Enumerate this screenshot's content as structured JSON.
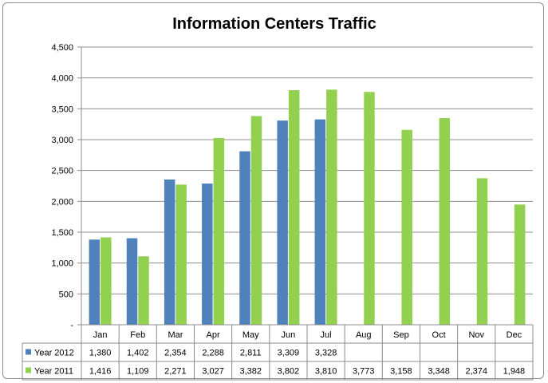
{
  "chart_data": {
    "type": "bar",
    "title": "Information Centers Traffic",
    "categories": [
      "Jan",
      "Feb",
      "Mar",
      "Apr",
      "May",
      "Jun",
      "Jul",
      "Aug",
      "Sep",
      "Oct",
      "Nov",
      "Dec"
    ],
    "series": [
      {
        "name": "Year 2012",
        "color": "#4f81bd",
        "values": [
          1380,
          1402,
          2354,
          2288,
          2811,
          3309,
          3328,
          null,
          null,
          null,
          null,
          null
        ],
        "labels": [
          "1,380",
          "1,402",
          "2,354",
          "2,288",
          "2,811",
          "3,309",
          "3,328",
          "",
          "",
          "",
          "",
          ""
        ]
      },
      {
        "name": "Year 2011",
        "color": "#92d050",
        "values": [
          1416,
          1109,
          2271,
          3027,
          3382,
          3802,
          3810,
          3773,
          3158,
          3348,
          2374,
          1948
        ],
        "labels": [
          "1,416",
          "1,109",
          "2,271",
          "3,027",
          "3,382",
          "3,802",
          "3,810",
          "3,773",
          "3,158",
          "3,348",
          "2,374",
          "1,948"
        ]
      }
    ],
    "ylim": [
      0,
      4500
    ],
    "yticks": [
      0,
      500,
      1000,
      1500,
      2000,
      2500,
      3000,
      3500,
      4000,
      4500
    ],
    "ytick_labels": [
      "-",
      "500",
      "1,000",
      "1,500",
      "2,000",
      "2,500",
      "3,000",
      "3,500",
      "4,000",
      "4,500"
    ],
    "grid": true,
    "legend": "data-table"
  }
}
